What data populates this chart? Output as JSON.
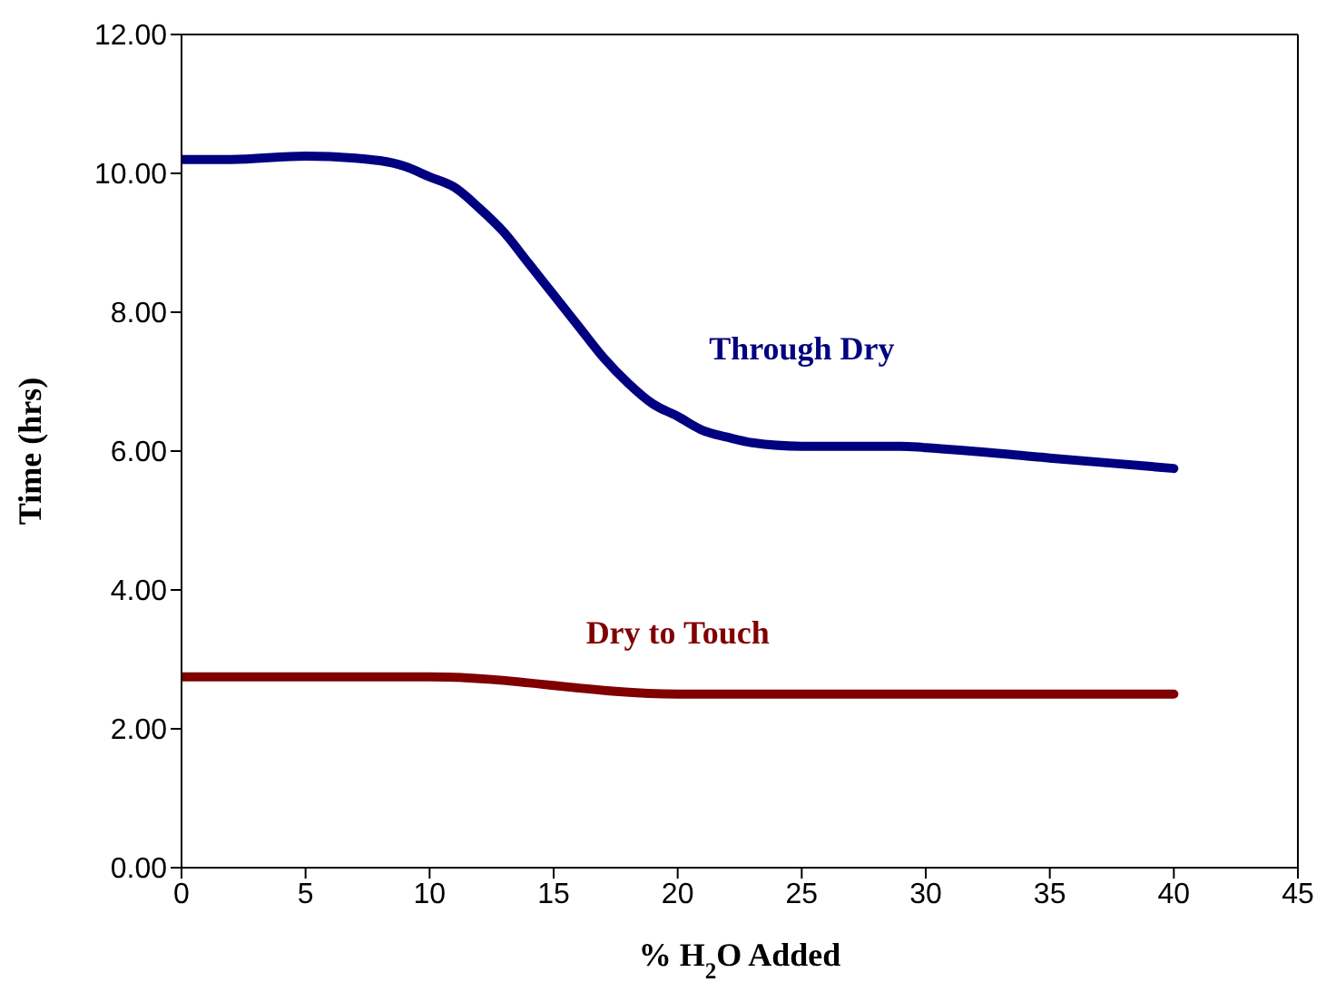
{
  "chart_data": {
    "type": "line",
    "xlabel": "% H$_{2}$O Added",
    "ylabel": "Time (hrs)",
    "series": [
      {
        "name": "Through Dry",
        "color": "#000080",
        "x": [
          0,
          2,
          5,
          7,
          9,
          10,
          11,
          12,
          13,
          14,
          15,
          16,
          17,
          18,
          19,
          20,
          21,
          22,
          23,
          25,
          29,
          30,
          35,
          40
        ],
        "values": [
          10.2,
          10.2,
          10.25,
          10.22,
          10.1,
          9.95,
          9.8,
          9.5,
          9.15,
          8.7,
          8.25,
          7.8,
          7.35,
          6.98,
          6.68,
          6.5,
          6.3,
          6.2,
          6.12,
          6.07,
          6.07,
          6.05,
          5.9,
          5.75
        ]
      },
      {
        "name": "Dry to Touch",
        "color": "#800000",
        "x": [
          0,
          10,
          20,
          40
        ],
        "values": [
          2.75,
          2.75,
          2.5,
          2.5
        ]
      }
    ],
    "xlim": [
      0,
      45
    ],
    "xticks": [
      0,
      5,
      10,
      15,
      20,
      25,
      30,
      35,
      40,
      45
    ],
    "ylim": [
      0,
      12
    ],
    "yticks": [
      {
        "value": 0,
        "label": "0.00"
      },
      {
        "value": 2,
        "label": "2.00"
      },
      {
        "value": 4,
        "label": "4.00"
      },
      {
        "value": 6,
        "label": "6.00"
      },
      {
        "value": 8,
        "label": "8.00"
      },
      {
        "value": 10,
        "label": "10.00"
      },
      {
        "value": 12,
        "label": "12.00"
      }
    ],
    "grid": false,
    "legend": false,
    "marker": "none",
    "line_style": "solid"
  }
}
